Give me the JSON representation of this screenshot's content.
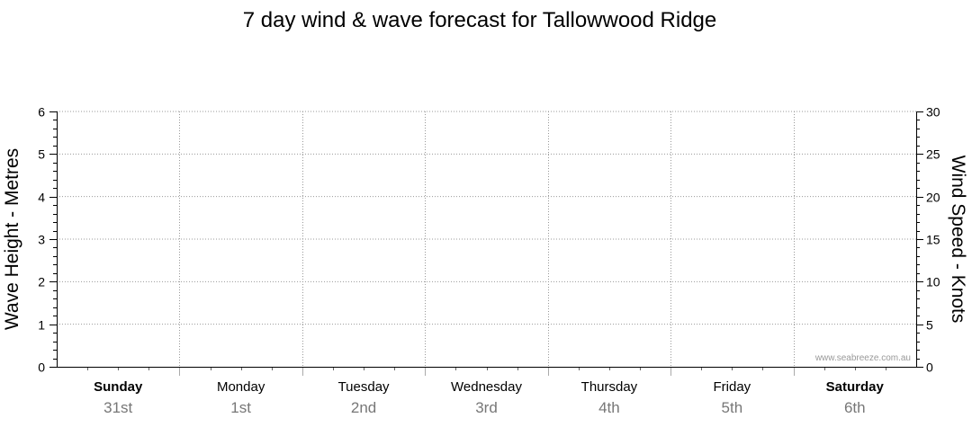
{
  "chart_data": {
    "type": "line",
    "title": "7 day wind & wave forecast for Tallowwood Ridge",
    "ylabel_left": "Wave Height - Metres",
    "ylabel_right": "Wind Speed - Knots",
    "ylim_left": [
      0,
      6
    ],
    "yticks_left": [
      "0",
      "1",
      "2",
      "3",
      "4",
      "5",
      "6"
    ],
    "ylim_right": [
      0,
      30
    ],
    "yticks_right": [
      "0",
      "5",
      "10",
      "15",
      "20",
      "25",
      "30"
    ],
    "days": [
      {
        "day": "Sunday",
        "date": "31st",
        "bold": true
      },
      {
        "day": "Monday",
        "date": "1st",
        "bold": false
      },
      {
        "day": "Tuesday",
        "date": "2nd",
        "bold": false
      },
      {
        "day": "Wednesday",
        "date": "3rd",
        "bold": false
      },
      {
        "day": "Thursday",
        "date": "4th",
        "bold": false
      },
      {
        "day": "Friday",
        "date": "5th",
        "bold": false
      },
      {
        "day": "Saturday",
        "date": "6th",
        "bold": true
      }
    ],
    "series": [],
    "grid": true,
    "watermark": "www.seabreeze.com.au"
  }
}
